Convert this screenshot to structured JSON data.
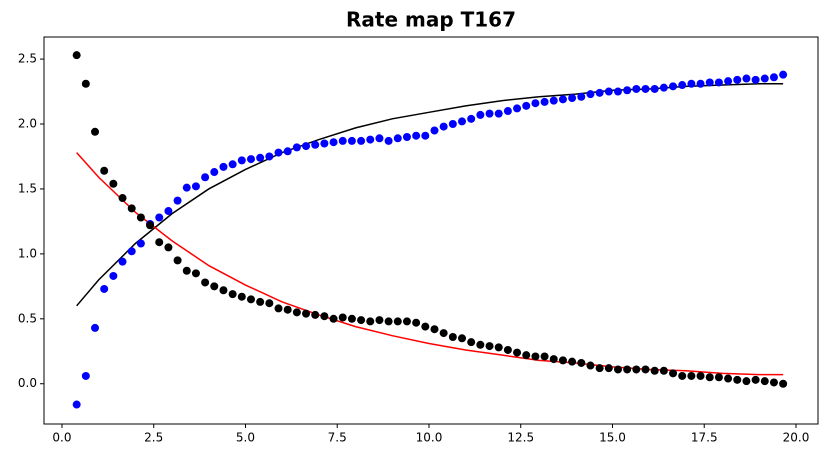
{
  "chart_data": {
    "type": "scatter",
    "title": "Rate map T167",
    "x": [
      0.4,
      0.65,
      0.9,
      1.15,
      1.4,
      1.65,
      1.9,
      2.15,
      2.4,
      2.65,
      2.9,
      3.15,
      3.4,
      3.65,
      3.9,
      4.15,
      4.4,
      4.65,
      4.9,
      5.15,
      5.4,
      5.65,
      5.9,
      6.15,
      6.4,
      6.65,
      6.9,
      7.15,
      7.4,
      7.65,
      7.9,
      8.15,
      8.4,
      8.65,
      8.9,
      9.15,
      9.4,
      9.65,
      9.9,
      10.15,
      10.4,
      10.65,
      10.9,
      11.15,
      11.4,
      11.65,
      11.9,
      12.15,
      12.4,
      12.65,
      12.9,
      13.15,
      13.4,
      13.65,
      13.9,
      14.15,
      14.4,
      14.65,
      14.9,
      15.15,
      15.4,
      15.65,
      15.9,
      16.15,
      16.4,
      16.65,
      16.9,
      17.15,
      17.4,
      17.65,
      17.9,
      18.15,
      18.4,
      18.65,
      18.9,
      19.15,
      19.4,
      19.65
    ],
    "series": [
      {
        "color": "#0000ff",
        "values": [
          -0.16,
          0.06,
          0.43,
          0.73,
          0.83,
          0.94,
          1.02,
          1.08,
          1.23,
          1.28,
          1.33,
          1.41,
          1.51,
          1.52,
          1.59,
          1.63,
          1.67,
          1.69,
          1.72,
          1.73,
          1.74,
          1.75,
          1.78,
          1.79,
          1.82,
          1.83,
          1.84,
          1.85,
          1.86,
          1.87,
          1.87,
          1.87,
          1.88,
          1.89,
          1.87,
          1.89,
          1.9,
          1.91,
          1.91,
          1.95,
          1.98,
          2.0,
          2.02,
          2.04,
          2.07,
          2.08,
          2.08,
          2.1,
          2.12,
          2.14,
          2.16,
          2.17,
          2.18,
          2.19,
          2.2,
          2.21,
          2.23,
          2.24,
          2.25,
          2.25,
          2.26,
          2.27,
          2.27,
          2.27,
          2.28,
          2.29,
          2.3,
          2.31,
          2.31,
          2.32,
          2.32,
          2.33,
          2.34,
          2.35,
          2.34,
          2.35,
          2.36,
          2.38
        ]
      },
      {
        "color": "#000000",
        "values": [
          2.53,
          2.31,
          1.94,
          1.64,
          1.54,
          1.43,
          1.35,
          1.28,
          1.22,
          1.09,
          1.05,
          0.95,
          0.87,
          0.85,
          0.78,
          0.75,
          0.72,
          0.69,
          0.67,
          0.65,
          0.63,
          0.62,
          0.58,
          0.57,
          0.55,
          0.54,
          0.53,
          0.52,
          0.5,
          0.51,
          0.5,
          0.49,
          0.48,
          0.49,
          0.48,
          0.48,
          0.48,
          0.47,
          0.44,
          0.42,
          0.39,
          0.36,
          0.35,
          0.32,
          0.3,
          0.29,
          0.28,
          0.26,
          0.24,
          0.22,
          0.21,
          0.21,
          0.19,
          0.18,
          0.17,
          0.16,
          0.14,
          0.12,
          0.12,
          0.11,
          0.11,
          0.11,
          0.11,
          0.1,
          0.1,
          0.08,
          0.06,
          0.06,
          0.06,
          0.05,
          0.05,
          0.04,
          0.03,
          0.02,
          0.03,
          0.02,
          0.01,
          0.0
        ]
      }
    ],
    "fit_lines": [
      {
        "color": "#000000",
        "x": [
          0.4,
          1,
          2,
          3,
          4,
          5,
          6,
          7,
          8,
          9,
          10,
          11,
          12,
          13,
          14,
          15,
          16,
          17,
          18,
          19,
          19.65
        ],
        "values": [
          0.6,
          0.8,
          1.08,
          1.31,
          1.5,
          1.65,
          1.78,
          1.88,
          1.97,
          2.04,
          2.09,
          2.14,
          2.18,
          2.21,
          2.23,
          2.26,
          2.27,
          2.29,
          2.3,
          2.31,
          2.31
        ]
      },
      {
        "color": "#ff0000",
        "x": [
          0.4,
          1,
          2,
          3,
          4,
          5,
          6,
          7,
          8,
          9,
          10,
          11,
          12,
          13,
          14,
          15,
          16,
          17,
          18,
          19,
          19.65
        ],
        "values": [
          1.78,
          1.59,
          1.32,
          1.1,
          0.91,
          0.76,
          0.63,
          0.53,
          0.44,
          0.37,
          0.31,
          0.26,
          0.22,
          0.18,
          0.16,
          0.13,
          0.11,
          0.1,
          0.08,
          0.07,
          0.07
        ]
      }
    ],
    "xlim": [
      -0.49,
      20.6
    ],
    "ylim": [
      -0.31,
      2.67
    ],
    "xticks": [
      {
        "value": 0,
        "label": "0.0"
      },
      2.5,
      {
        "value": 5,
        "label": "5.0"
      },
      7.5,
      {
        "value": 10,
        "label": "10.0"
      },
      12.5,
      {
        "value": 15,
        "label": "15.0"
      },
      17.5,
      {
        "value": 20,
        "label": "20.0"
      }
    ],
    "yticks": [
      {
        "value": 0,
        "label": "0.0"
      },
      0.5,
      {
        "value": 1,
        "label": "1.0"
      },
      1.5,
      {
        "value": 2,
        "label": "2.0"
      },
      2.5
    ]
  }
}
